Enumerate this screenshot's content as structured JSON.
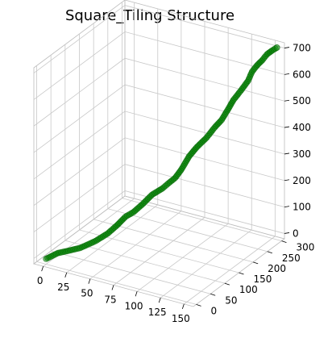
{
  "chart_data": {
    "type": "scatter",
    "title": "Square_Tiling Structure",
    "marker_color": "#008000",
    "pane_color": "#f2f2f2",
    "xlim": [
      -10,
      160
    ],
    "ylim": [
      -10,
      310
    ],
    "zlim": [
      -20,
      720
    ],
    "xticks": [
      0,
      25,
      50,
      75,
      100,
      125,
      150
    ],
    "yticks": [
      0,
      50,
      100,
      150,
      200,
      250,
      300
    ],
    "zticks": [
      0,
      100,
      200,
      300,
      400,
      500,
      600,
      700
    ],
    "grid": true,
    "path_points": [
      {
        "x": 0,
        "y": 0,
        "z": 0
      },
      {
        "x": 10,
        "y": 8,
        "z": 25
      },
      {
        "x": 20,
        "y": 12,
        "z": 40
      },
      {
        "x": 32,
        "y": 15,
        "z": 60
      },
      {
        "x": 45,
        "y": 25,
        "z": 90
      },
      {
        "x": 55,
        "y": 35,
        "z": 120
      },
      {
        "x": 62,
        "y": 45,
        "z": 150
      },
      {
        "x": 68,
        "y": 55,
        "z": 180
      },
      {
        "x": 75,
        "y": 60,
        "z": 200
      },
      {
        "x": 82,
        "y": 70,
        "z": 230
      },
      {
        "x": 88,
        "y": 82,
        "z": 260
      },
      {
        "x": 95,
        "y": 95,
        "z": 280
      },
      {
        "x": 100,
        "y": 100,
        "z": 300
      },
      {
        "x": 105,
        "y": 108,
        "z": 320
      },
      {
        "x": 108,
        "y": 120,
        "z": 345
      },
      {
        "x": 110,
        "y": 140,
        "z": 380
      },
      {
        "x": 112,
        "y": 160,
        "z": 400
      },
      {
        "x": 118,
        "y": 175,
        "z": 430
      },
      {
        "x": 122,
        "y": 190,
        "z": 460
      },
      {
        "x": 125,
        "y": 205,
        "z": 480
      },
      {
        "x": 128,
        "y": 215,
        "z": 510
      },
      {
        "x": 130,
        "y": 230,
        "z": 540
      },
      {
        "x": 134,
        "y": 245,
        "z": 570
      },
      {
        "x": 138,
        "y": 255,
        "z": 600
      },
      {
        "x": 140,
        "y": 262,
        "z": 630
      },
      {
        "x": 143,
        "y": 268,
        "z": 650
      },
      {
        "x": 147,
        "y": 275,
        "z": 670
      },
      {
        "x": 150,
        "y": 282,
        "z": 690
      },
      {
        "x": 153,
        "y": 290,
        "z": 700
      },
      {
        "x": 155,
        "y": 300,
        "z": 705
      }
    ]
  }
}
